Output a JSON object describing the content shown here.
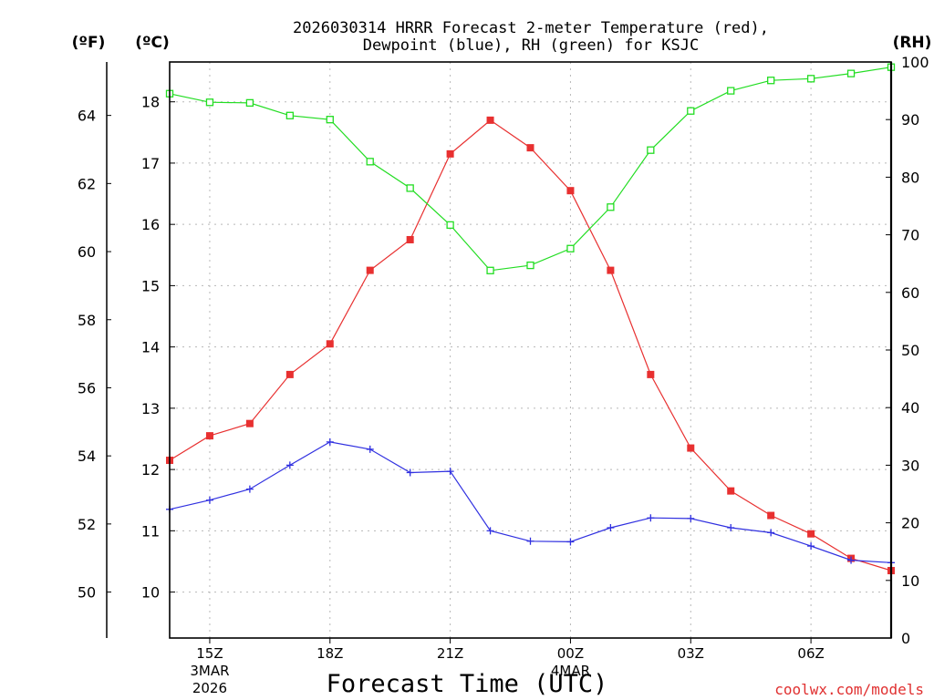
{
  "chart_data": {
    "type": "line",
    "title_line1": "2026030314 HRRR Forecast 2-meter Temperature (red),",
    "title_line2": "Dewpoint (blue), RH (green) for KSJC",
    "unit_left_f": "(ºF)",
    "unit_left_c": "(ºC)",
    "unit_right": "(RH)",
    "xlabel": "Forecast Time (UTC)",
    "credit": "coolwx.com/models",
    "x_hours": [
      14,
      15,
      16,
      17,
      18,
      19,
      20,
      21,
      22,
      23,
      24,
      25,
      26,
      27,
      28,
      29,
      30,
      31,
      32
    ],
    "x_ticks": [
      {
        "hour": 15,
        "label": "15Z",
        "sub1": "3MAR",
        "sub2": "2026"
      },
      {
        "hour": 18,
        "label": "18Z",
        "sub1": "",
        "sub2": ""
      },
      {
        "hour": 21,
        "label": "21Z",
        "sub1": "",
        "sub2": ""
      },
      {
        "hour": 24,
        "label": "00Z",
        "sub1": "4MAR",
        "sub2": ""
      },
      {
        "hour": 27,
        "label": "03Z",
        "sub1": "",
        "sub2": ""
      },
      {
        "hour": 30,
        "label": "06Z",
        "sub1": "",
        "sub2": ""
      }
    ],
    "xlim": [
      14,
      32
    ],
    "celsius_ylim": [
      9.25,
      18.65
    ],
    "celsius_ticks": [
      10,
      11,
      12,
      13,
      14,
      15,
      16,
      17,
      18
    ],
    "fahrenheit_ticks": [
      50,
      52,
      54,
      56,
      58,
      60,
      62,
      64
    ],
    "rh_ylim": [
      0,
      100
    ],
    "rh_ticks": [
      0,
      10,
      20,
      30,
      40,
      50,
      60,
      70,
      80,
      90,
      100
    ],
    "series": [
      {
        "name": "Temperature",
        "units": "C",
        "color": "#e83030",
        "marker": "filled-square",
        "values": [
          12.15,
          12.55,
          12.75,
          13.55,
          14.05,
          15.25,
          15.75,
          17.15,
          17.7,
          17.25,
          16.55,
          15.25,
          13.55,
          12.35,
          11.65,
          11.25,
          10.95,
          10.55,
          10.35
        ]
      },
      {
        "name": "Dewpoint",
        "units": "C",
        "color": "#3030e0",
        "marker": "plus",
        "values": [
          11.35,
          11.5,
          11.68,
          12.07,
          12.45,
          12.33,
          11.95,
          11.97,
          11.0,
          10.83,
          10.82,
          11.05,
          11.21,
          11.2,
          11.05,
          10.97,
          10.75,
          10.52,
          10.48
        ]
      },
      {
        "name": "RH",
        "units": "%",
        "color": "#22dd22",
        "marker": "open-square",
        "values": [
          94.5,
          93.0,
          92.9,
          90.7,
          90.0,
          82.7,
          78.1,
          71.7,
          63.8,
          64.7,
          67.6,
          74.8,
          84.7,
          91.5,
          95.0,
          96.8,
          97.1,
          98.0,
          99.1
        ]
      }
    ]
  }
}
